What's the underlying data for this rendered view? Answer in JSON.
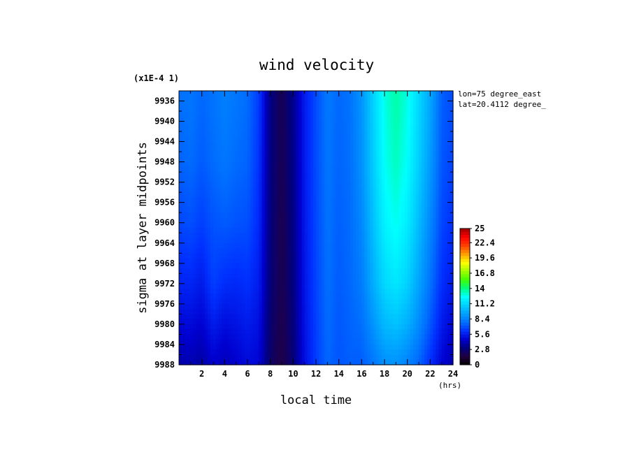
{
  "chart_data": {
    "type": "heatmap",
    "title": "wind velocity",
    "y_scale_note": "(x1E-4 1)",
    "xlabel": "local time",
    "x_unit": "(hrs)",
    "ylabel": "sigma at layer midpoints",
    "xlim": [
      0,
      24
    ],
    "ylim": [
      9988,
      9934
    ],
    "x_ticks": [
      "2",
      "4",
      "6",
      "8",
      "10",
      "12",
      "14",
      "16",
      "18",
      "20",
      "22",
      "24"
    ],
    "y_ticks": [
      "9936",
      "9940",
      "9944",
      "9948",
      "9952",
      "9956",
      "9960",
      "9964",
      "9968",
      "9972",
      "9976",
      "9980",
      "9984",
      "9988"
    ],
    "annotations": [
      "lon=75 degree_east",
      "lat=20.4112 degree_"
    ],
    "colorbar": {
      "min": 0,
      "max": 25,
      "tick_labels": [
        "25",
        "22.4",
        "19.6",
        "16.8",
        "14",
        "11.2",
        "8.4",
        "5.6",
        "2.8",
        "0"
      ],
      "colors": [
        "#000000",
        "#220040",
        "#000080",
        "#0000d0",
        "#0030ff",
        "#0070ff",
        "#00a0ff",
        "#00d0ff",
        "#00ffff",
        "#00ff80",
        "#40ff00",
        "#a0ff00",
        "#ffff00",
        "#ffa000",
        "#ff4000",
        "#ff0000",
        "#a00000"
      ]
    },
    "x": [
      0,
      1,
      2,
      3,
      4,
      5,
      6,
      7,
      8,
      9,
      10,
      11,
      12,
      13,
      14,
      15,
      16,
      17,
      18,
      19,
      20,
      21,
      22,
      23,
      24
    ],
    "y": [
      9936,
      9948,
      9960,
      9972,
      9980,
      9988
    ],
    "values": [
      [
        7.8,
        8.0,
        7.6,
        7.9,
        8.3,
        8.0,
        7.7,
        6.5,
        3.2,
        2.0,
        3.4,
        5.6,
        6.9,
        8.1,
        7.6,
        7.9,
        9.0,
        11.0,
        12.8,
        13.6,
        12.8,
        11.2,
        9.6,
        7.4,
        6.9
      ],
      [
        7.5,
        7.7,
        7.3,
        7.7,
        8.0,
        7.7,
        7.5,
        6.3,
        3.1,
        2.0,
        3.3,
        5.6,
        6.9,
        8.0,
        7.5,
        7.8,
        8.9,
        10.8,
        12.6,
        13.3,
        12.5,
        10.9,
        9.2,
        7.2,
        6.7
      ],
      [
        6.8,
        7.0,
        6.6,
        7.1,
        7.3,
        7.1,
        7.0,
        6.0,
        3.0,
        1.9,
        3.2,
        5.5,
        6.8,
        7.9,
        7.4,
        7.7,
        8.6,
        10.4,
        12.1,
        12.7,
        11.9,
        10.3,
        8.6,
        6.8,
        6.2
      ],
      [
        5.8,
        5.9,
        5.5,
        6.6,
        6.1,
        6.0,
        6.2,
        5.6,
        2.9,
        1.9,
        3.1,
        5.4,
        6.7,
        7.8,
        7.3,
        7.6,
        8.2,
        9.8,
        11.2,
        11.7,
        11.0,
        9.5,
        7.9,
        6.2,
        5.5
      ],
      [
        4.9,
        5.0,
        4.7,
        5.6,
        5.1,
        5.3,
        5.6,
        5.2,
        2.7,
        1.8,
        3.0,
        5.3,
        6.6,
        7.7,
        7.2,
        7.5,
        7.8,
        9.0,
        10.2,
        10.5,
        9.9,
        8.7,
        7.2,
        5.6,
        4.8
      ],
      [
        3.9,
        4.1,
        3.8,
        4.6,
        4.2,
        4.6,
        5.0,
        4.8,
        2.5,
        1.7,
        2.9,
        5.2,
        6.5,
        7.6,
        7.1,
        7.4,
        7.3,
        8.0,
        8.8,
        8.9,
        8.4,
        7.5,
        6.1,
        4.8,
        4.0
      ]
    ]
  }
}
